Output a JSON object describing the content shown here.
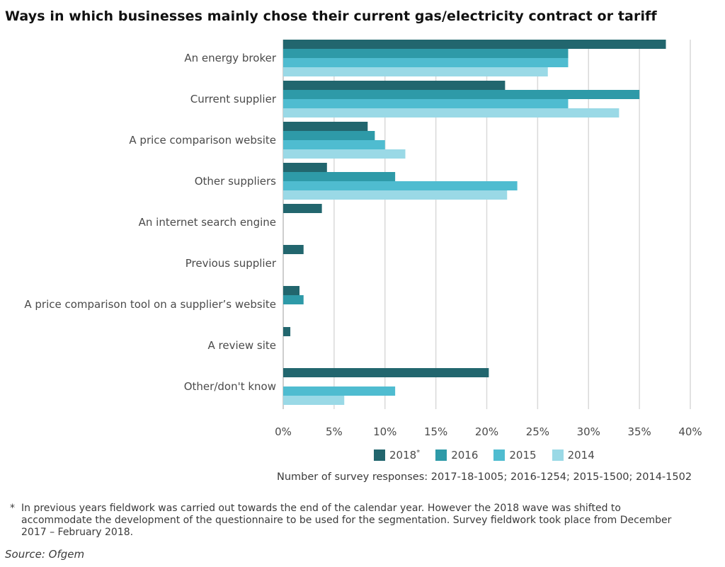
{
  "title": "Ways in which businesses mainly chose their current gas/electricity contract or tariff",
  "chart_data": {
    "type": "bar",
    "orientation": "horizontal",
    "categories": [
      "An energy broker",
      "Current supplier",
      "A price comparison website",
      "Other suppliers",
      "An internet search engine",
      "Previous supplier",
      "A price comparison tool on a supplier’s website",
      "A review site",
      "Other/don't know"
    ],
    "series": [
      {
        "name": "2018",
        "color": "#22666e",
        "values": [
          37.6,
          21.8,
          8.3,
          4.3,
          3.8,
          2.0,
          1.6,
          0.7,
          20.2
        ]
      },
      {
        "name": "2016",
        "color": "#2e9aa8",
        "values": [
          28,
          35,
          9,
          11,
          null,
          null,
          2,
          null,
          null
        ]
      },
      {
        "name": "2015",
        "color": "#4fbcd0",
        "values": [
          28,
          28,
          10,
          23,
          null,
          null,
          null,
          null,
          11
        ]
      },
      {
        "name": "2014",
        "color": "#9ad9e6",
        "values": [
          26,
          33,
          12,
          22,
          null,
          null,
          null,
          null,
          6
        ]
      }
    ],
    "xlim": [
      0,
      40
    ],
    "xticks": [
      0,
      5,
      10,
      15,
      20,
      25,
      30,
      35,
      40
    ],
    "tick_suffix": "%",
    "grid": true
  },
  "legend": {
    "items": [
      {
        "label": "2018",
        "sup": "*",
        "color": "#22666e"
      },
      {
        "label": "2016",
        "sup": "",
        "color": "#2e9aa8"
      },
      {
        "label": "2015",
        "sup": "",
        "color": "#4fbcd0"
      },
      {
        "label": "2014",
        "sup": "",
        "color": "#9ad9e6"
      }
    ]
  },
  "responses_note": "Number of survey responses: 2017-18-1005; 2016-1254; 2015-1500; 2014-1502",
  "footnote": {
    "marker": "*",
    "text": "In previous years fieldwork was carried out towards the end of the calendar year. However the 2018 wave was shifted to accommodate the development of the questionnaire to be used for the segmentation. Survey fieldwork took place from December 2017 – February 2018."
  },
  "source": "Source: Ofgem"
}
